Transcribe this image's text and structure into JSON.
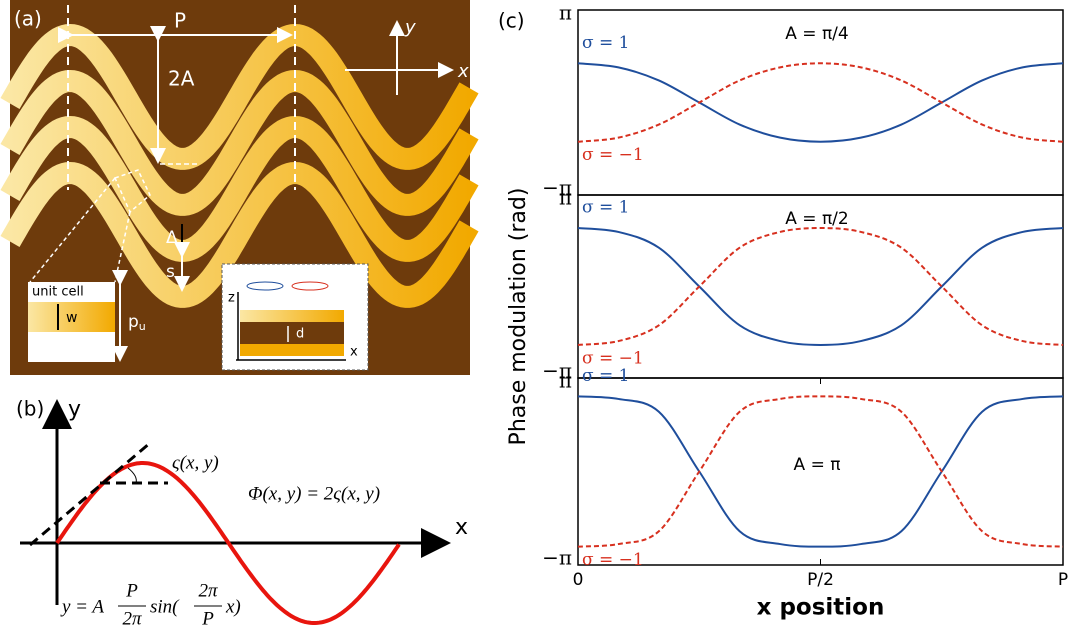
{
  "panel_a": {
    "label": "(a)",
    "period": "P",
    "amplitude": "2A",
    "axis_y": "y",
    "axis_x": "x",
    "delta": "Δ",
    "spacing": "s",
    "unit_cell": "unit cell",
    "width": "w",
    "pitch": "p",
    "pitch_sub": "u",
    "inset_z": "z",
    "thickness": "d",
    "inset_x": "x"
  },
  "panel_b": {
    "label": "(b)",
    "axis_y": "y",
    "axis_x": "x",
    "angle": "ς(x, y)",
    "phase": "Φ(x, y) = 2ς(x, y)",
    "eq_lhs": "y = A",
    "eq_num1": "P",
    "eq_den1": "2π",
    "eq_sin": "sin(",
    "eq_num2": "2π",
    "eq_den2": "P",
    "eq_end": "x)"
  },
  "panel_c": {
    "label": "(c)"
  },
  "chart_data": [
    {
      "type": "line",
      "annotation": "A = π/4",
      "x": [
        0,
        0.0833,
        0.1667,
        0.25,
        0.3333,
        0.4167,
        0.5,
        0.5833,
        0.6667,
        0.75,
        0.8333,
        0.9167,
        1
      ],
      "xlim": [
        0,
        1
      ],
      "ylim": [
        -3.14159,
        3.14159
      ],
      "yticks": [
        {
          "value": -3.14159,
          "label": "−π"
        },
        {
          "value": 3.14159,
          "label": "π"
        }
      ],
      "series": [
        {
          "name": "σ = 1",
          "color": "#1f4e9c",
          "dash": false,
          "values": [
            1.332,
            1.194,
            0.749,
            0,
            -0.749,
            -1.194,
            -1.332,
            -1.194,
            -0.749,
            0,
            0.749,
            1.194,
            1.332
          ]
        },
        {
          "name": "σ = −1",
          "color": "#d7301f",
          "dash": true,
          "values": [
            -1.332,
            -1.194,
            -0.749,
            0,
            0.749,
            1.194,
            1.332,
            1.194,
            0.749,
            0,
            -0.749,
            -1.194,
            -1.332
          ]
        }
      ]
    },
    {
      "type": "line",
      "annotation": "A = π/2",
      "ylabel": "Phase modulation (rad)",
      "x": [
        0,
        0.0833,
        0.1667,
        0.25,
        0.3333,
        0.4167,
        0.5,
        0.5833,
        0.6667,
        0.75,
        0.8333,
        0.9167,
        1
      ],
      "xlim": [
        0,
        1
      ],
      "ylim": [
        -3.14159,
        3.14159
      ],
      "yticks": [
        {
          "value": -3.14159,
          "label": "−π"
        },
        {
          "value": 3.14159,
          "label": "π"
        }
      ],
      "series": [
        {
          "name": "σ = 1",
          "color": "#1f4e9c",
          "dash": false,
          "values": [
            2.008,
            1.874,
            1.332,
            0,
            -1.332,
            -1.874,
            -2.008,
            -1.874,
            -1.332,
            0,
            1.332,
            1.874,
            2.008
          ]
        },
        {
          "name": "σ = −1",
          "color": "#d7301f",
          "dash": true,
          "values": [
            -2.008,
            -1.874,
            -1.332,
            0,
            1.332,
            1.874,
            2.008,
            1.874,
            1.332,
            0,
            -1.332,
            -1.874,
            -2.008
          ]
        }
      ]
    },
    {
      "type": "line",
      "annotation": "A = π",
      "xlabel": "x position",
      "x": [
        0,
        0.0833,
        0.1667,
        0.25,
        0.3333,
        0.4167,
        0.5,
        0.5833,
        0.6667,
        0.75,
        0.8333,
        0.9167,
        1
      ],
      "xlim": [
        0,
        1
      ],
      "xticks": [
        0,
        {
          "value": 0.5,
          "label": "P/2"
        },
        {
          "value": 1,
          "label": "P"
        }
      ],
      "ylim": [
        -3.14159,
        3.14159
      ],
      "yticks": [
        {
          "value": -3.14159,
          "label": "−π"
        },
        {
          "value": 3.14159,
          "label": "π"
        }
      ],
      "series": [
        {
          "name": "σ = 1",
          "color": "#1f4e9c",
          "dash": false,
          "values": [
            2.525,
            2.438,
            2.008,
            0,
            -2.008,
            -2.438,
            -2.525,
            -2.438,
            -2.008,
            0,
            2.008,
            2.438,
            2.525
          ]
        },
        {
          "name": "σ = −1",
          "color": "#d7301f",
          "dash": true,
          "values": [
            -2.525,
            -2.438,
            -2.008,
            0,
            2.008,
            2.438,
            2.525,
            2.438,
            2.008,
            0,
            -2.008,
            -2.438,
            -2.525
          ]
        }
      ]
    }
  ]
}
